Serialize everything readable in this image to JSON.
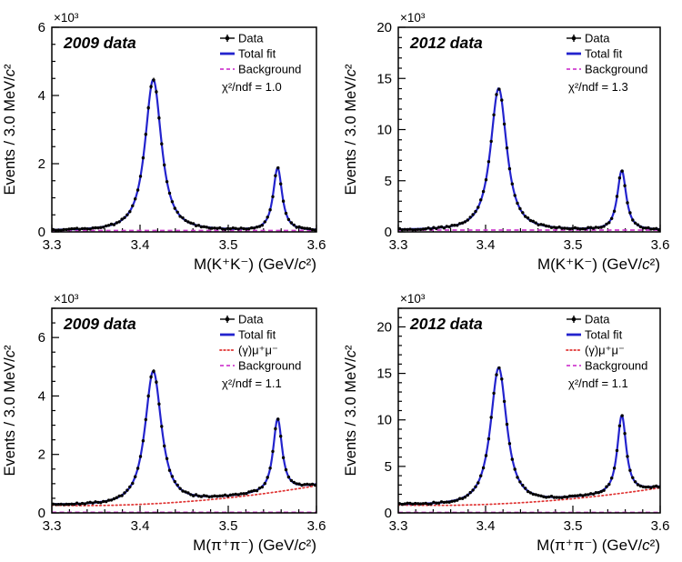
{
  "colors": {
    "total_fit": "#2323cd",
    "background": "#cf3ecf",
    "muon": "#e03433",
    "data": "#000000",
    "dataset_label": "#d52a2e"
  },
  "chart_data": [
    {
      "position": "top-left",
      "type": "line+scatter",
      "dataset_label": "2009 data",
      "chi2_label": "χ²/ndf = 1.0",
      "scale_label": "×10³",
      "xlabel": "M(K⁺K⁻) (GeV/c²)",
      "ylabel": "Events / 3.0 MeV/c²",
      "xlim": [
        3.3,
        3.6
      ],
      "ylim": [
        0,
        6
      ],
      "xticks": [
        "3.3",
        "3.4",
        "3.5",
        "3.6"
      ],
      "yticks": [
        "0",
        "2",
        "4",
        "6"
      ],
      "x_minor_step": 0.02,
      "y_minor_step": 0.5,
      "bin_width_gev": 0.003,
      "grid": false,
      "legend_position": "top-right-inside",
      "legend": [
        {
          "key": "data",
          "label": "Data"
        },
        {
          "key": "total",
          "label": "Total fit"
        },
        {
          "key": "background",
          "label": "Background"
        }
      ],
      "fit": {
        "peaks": [
          {
            "name": "chi_c0",
            "center": 3.415,
            "height": 4.43,
            "hwhm": 0.011
          },
          {
            "name": "chi_c2",
            "center": 3.556,
            "height": 1.83,
            "hwhm": 0.006
          }
        ],
        "background_level": 0.04,
        "mu_points": null
      }
    },
    {
      "position": "top-right",
      "type": "line+scatter",
      "dataset_label": "2012 data",
      "chi2_label": "χ²/ndf = 1.3",
      "scale_label": "×10³",
      "xlabel": "M(K⁺K⁻) (GeV/c²)",
      "ylabel": "Events / 3.0 MeV/c²",
      "xlim": [
        3.3,
        3.6
      ],
      "ylim": [
        0,
        20
      ],
      "xticks": [
        "3.3",
        "3.4",
        "3.5",
        "3.6"
      ],
      "yticks": [
        "0",
        "5",
        "10",
        "15",
        "20"
      ],
      "x_minor_step": 0.02,
      "y_minor_step": 1,
      "bin_width_gev": 0.003,
      "grid": false,
      "legend_position": "top-right-inside",
      "legend": [
        {
          "key": "data",
          "label": "Data"
        },
        {
          "key": "total",
          "label": "Total fit"
        },
        {
          "key": "background",
          "label": "Background"
        }
      ],
      "fit": {
        "peaks": [
          {
            "name": "chi_c0",
            "center": 3.415,
            "height": 13.85,
            "hwhm": 0.011
          },
          {
            "name": "chi_c2",
            "center": 3.556,
            "height": 5.8,
            "hwhm": 0.006
          }
        ],
        "background_level": 0.18,
        "mu_points": null
      }
    },
    {
      "position": "bottom-left",
      "type": "line+scatter",
      "dataset_label": "2009 data",
      "chi2_label": "χ²/ndf = 1.1",
      "scale_label": "×10³",
      "xlabel": "M(π⁺π⁻) (GeV/c²)",
      "ylabel": "Events / 3.0 MeV/c²",
      "xlim": [
        3.3,
        3.6
      ],
      "ylim": [
        0,
        7
      ],
      "xticks": [
        "3.3",
        "3.4",
        "3.5",
        "3.6"
      ],
      "yticks": [
        "0",
        "2",
        "4",
        "6"
      ],
      "x_minor_step": 0.02,
      "y_minor_step": 0.5,
      "bin_width_gev": 0.003,
      "grid": false,
      "legend_position": "top-right-inside",
      "legend": [
        {
          "key": "data",
          "label": "Data"
        },
        {
          "key": "total",
          "label": "Total fit"
        },
        {
          "key": "muon",
          "label": "(γ)μ⁺μ⁻"
        },
        {
          "key": "background",
          "label": "Background"
        }
      ],
      "fit": {
        "peaks": [
          {
            "name": "chi_c0",
            "center": 3.415,
            "height": 4.52,
            "hwhm": 0.011
          },
          {
            "name": "chi_c2",
            "center": 3.556,
            "height": 2.47,
            "hwhm": 0.006
          }
        ],
        "background_level": 0.02,
        "mu_points": [
          [
            3.3,
            0.26
          ],
          [
            3.45,
            0.38
          ],
          [
            3.6,
            0.93
          ]
        ]
      }
    },
    {
      "position": "bottom-right",
      "type": "line+scatter",
      "dataset_label": "2012 data",
      "chi2_label": "χ²/ndf = 1.1",
      "scale_label": "×10³",
      "xlabel": "M(π⁺π⁻) (GeV/c²)",
      "ylabel": "Events / 3.0 MeV/c²",
      "xlim": [
        3.3,
        3.6
      ],
      "ylim": [
        0,
        22
      ],
      "xticks": [
        "3.3",
        "3.4",
        "3.5",
        "3.6"
      ],
      "yticks": [
        "0",
        "5",
        "10",
        "15",
        "20"
      ],
      "x_minor_step": 0.02,
      "y_minor_step": 1,
      "bin_width_gev": 0.003,
      "grid": false,
      "legend_position": "top-right-inside",
      "legend": [
        {
          "key": "data",
          "label": "Data"
        },
        {
          "key": "total",
          "label": "Total fit"
        },
        {
          "key": "muon",
          "label": "(γ)μ⁺μ⁻"
        },
        {
          "key": "background",
          "label": "Background"
        }
      ],
      "fit": {
        "peaks": [
          {
            "name": "chi_c0",
            "center": 3.415,
            "height": 14.6,
            "hwhm": 0.011
          },
          {
            "name": "chi_c2",
            "center": 3.556,
            "height": 8.3,
            "hwhm": 0.006
          }
        ],
        "background_level": 0.05,
        "mu_points": [
          [
            3.3,
            0.85
          ],
          [
            3.45,
            1.15
          ],
          [
            3.6,
            2.7
          ]
        ]
      }
    }
  ]
}
